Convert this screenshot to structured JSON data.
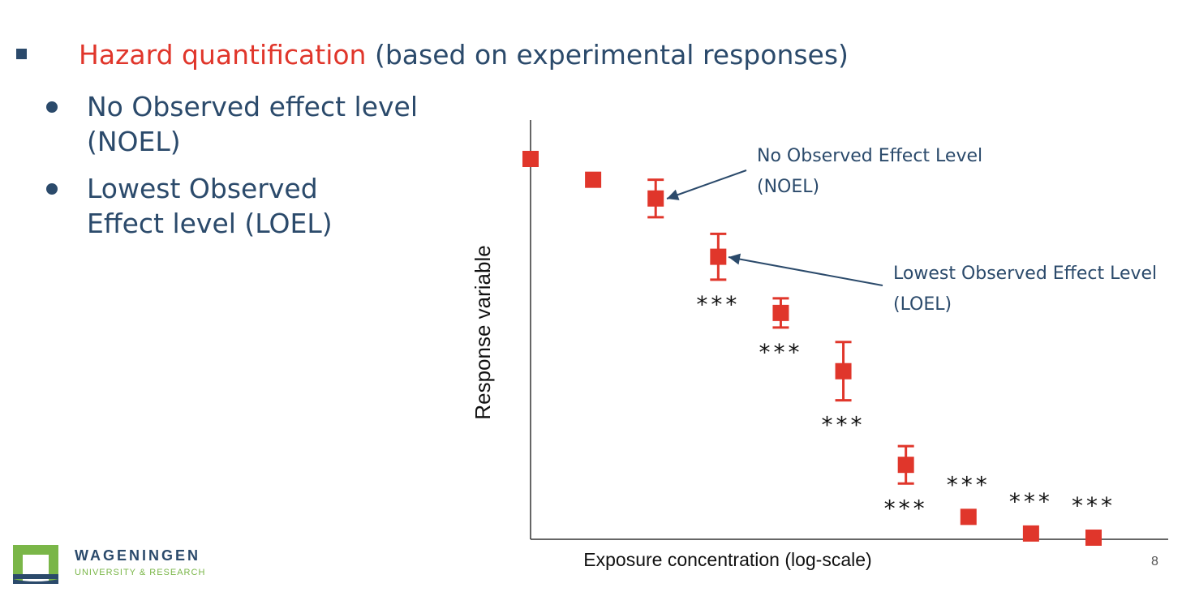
{
  "slide": {
    "heading_accent": "Hazard quantification",
    "heading_rest": " (based on experimental responses)",
    "bullets": [
      {
        "line1": "No Observed effect level",
        "line2": "(NOEL)"
      },
      {
        "line1": "Lowest Observed",
        "line2": "Effect level (LOEL)"
      }
    ],
    "page_number": "8"
  },
  "logo": {
    "name": "WAGENINGEN",
    "subtitle": "UNIVERSITY & RESEARCH",
    "colors": {
      "name": "#2b4a6b",
      "subtitle": "#7ab648",
      "green": "#7ab648",
      "blue": "#2b4a6b"
    }
  },
  "colors": {
    "accent": "#e0362b",
    "text": "#2b4a6b",
    "marker": "#e0362b"
  },
  "chart_data": {
    "type": "scatter",
    "xlabel": "Exposure concentration (log-scale)",
    "ylabel": "Response variable",
    "points": [
      {
        "x": 1,
        "y": 91,
        "err": null,
        "sig": ""
      },
      {
        "x": 2,
        "y": 86,
        "err": null,
        "sig": ""
      },
      {
        "x": 3,
        "y": 81.5,
        "err": 4.5,
        "sig": ""
      },
      {
        "x": 4,
        "y": 67.5,
        "err": 5.5,
        "sig": "***"
      },
      {
        "x": 5,
        "y": 54,
        "err": 3.5,
        "sig": "***"
      },
      {
        "x": 6,
        "y": 40,
        "err": 7,
        "sig": "***"
      },
      {
        "x": 7,
        "y": 17.5,
        "err": 4.5,
        "sig": "***"
      },
      {
        "x": 8,
        "y": 5,
        "err": null,
        "sig": "***"
      },
      {
        "x": 9,
        "y": 1,
        "err": null,
        "sig": "***"
      },
      {
        "x": 10,
        "y": 0,
        "err": null,
        "sig": "***"
      }
    ],
    "annotations": [
      {
        "line1": "No Observed Effect Level",
        "line2": "(NOEL)",
        "target": 3
      },
      {
        "line1": "Lowest Observed Effect Level",
        "line2": "(LOEL)",
        "target": 4
      }
    ]
  }
}
